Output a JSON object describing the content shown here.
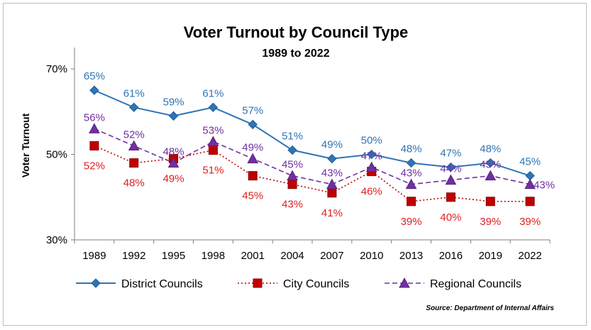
{
  "chart_data": {
    "type": "line",
    "title": "Voter Turnout by Council Type",
    "subtitle": "1989 to 2022",
    "xlabel": "",
    "ylabel": "Voter Turnout",
    "categories": [
      "1989",
      "1992",
      "1995",
      "1998",
      "2001",
      "2004",
      "2007",
      "2010",
      "2013",
      "2016",
      "2019",
      "2022"
    ],
    "ylim": [
      30,
      75
    ],
    "yticks": [
      30,
      50,
      70
    ],
    "ytick_labels": [
      "30%",
      "50%",
      "70%"
    ],
    "grid": false,
    "legend_position": "bottom",
    "source": "Source: Department of Internal Affairs",
    "series": [
      {
        "name": "District Councils",
        "values": [
          65,
          61,
          59,
          61,
          57,
          51,
          49,
          50,
          48,
          47,
          48,
          45
        ],
        "labels": [
          "65%",
          "61%",
          "59%",
          "61%",
          "57%",
          "51%",
          "49%",
          "50%",
          "48%",
          "47%",
          "48%",
          "45%"
        ],
        "color": "#2e75b6",
        "label_color": "#2e75b6",
        "marker": "diamond",
        "line_style": "solid"
      },
      {
        "name": "City Councils",
        "values": [
          52,
          48,
          49,
          51,
          45,
          43,
          41,
          46,
          39,
          40,
          39,
          39
        ],
        "labels": [
          "52%",
          "48%",
          "49%",
          "51%",
          "45%",
          "43%",
          "41%",
          "46%",
          "39%",
          "40%",
          "39%",
          "39%"
        ],
        "color": "#c00000",
        "label_color": "#e02020",
        "marker": "square",
        "line_style": "dotted"
      },
      {
        "name": "Regional Councils",
        "values": [
          56,
          52,
          48,
          53,
          49,
          45,
          43,
          47,
          43,
          44,
          45,
          43
        ],
        "labels": [
          "56%",
          "52%",
          "48%",
          "53%",
          "49%",
          "45%",
          "43%",
          "47%",
          "43%",
          "44%",
          "45%",
          "43%"
        ],
        "color": "#7030a0",
        "label_color": "#7030a0",
        "marker": "triangle",
        "line_style": "dashed"
      }
    ]
  }
}
